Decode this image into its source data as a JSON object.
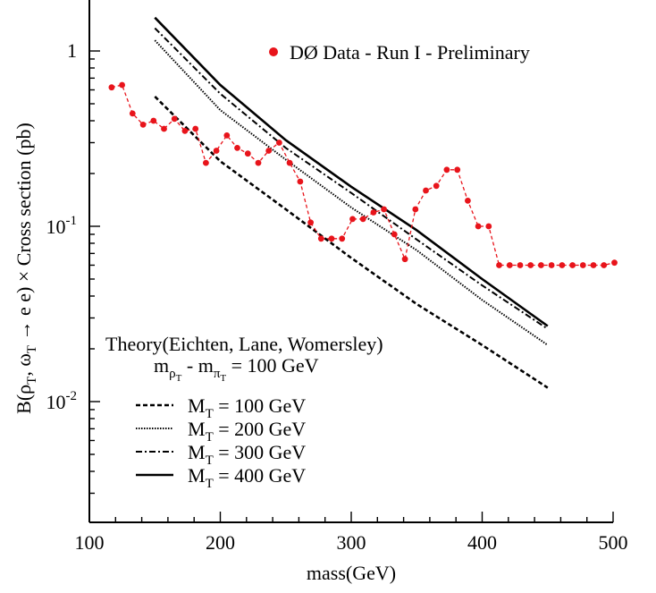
{
  "chart_data": {
    "type": "line",
    "title": "",
    "xlabel": "mass(GeV)",
    "ylabel": {
      "pre": "B(",
      "rho": "ρ",
      "rho_sub": "T",
      "sep": ", ",
      "omega": "ω",
      "omega_sub": "T",
      "arrow": " → e e)  ×  Cross section (pb)"
    },
    "xlim": [
      100,
      500
    ],
    "ylim": [
      0.003,
      3.0
    ],
    "ylog": true,
    "grid": false,
    "x_ticks": [
      {
        "value": 100,
        "label": "100"
      },
      {
        "value": 200,
        "label": "200"
      },
      {
        "value": 300,
        "label": "300"
      },
      {
        "value": 400,
        "label": "400"
      },
      {
        "value": 500,
        "label": "500"
      }
    ],
    "y_tick_labels": {
      "one": {
        "value": 1,
        "label": "1"
      },
      "tenth": {
        "value": 0.1,
        "base": "10",
        "exp": "-1"
      },
      "hundredth": {
        "value": 0.01,
        "base": "10",
        "exp": "-2"
      }
    },
    "data_series": {
      "name": "DØ Data - Run I - Preliminary",
      "color": "#e8141b",
      "x": [
        117,
        125,
        133,
        141,
        149,
        157,
        165,
        173,
        181,
        189,
        197,
        205,
        213,
        221,
        229,
        237,
        245,
        253,
        261,
        269,
        277,
        285,
        293,
        301,
        309,
        317,
        325,
        333,
        341,
        349,
        357,
        365,
        373,
        381,
        389,
        397,
        405,
        413,
        421,
        429,
        437,
        445,
        453,
        461,
        469,
        477,
        485,
        493,
        501
      ],
      "y": [
        0.62,
        0.64,
        0.44,
        0.38,
        0.4,
        0.36,
        0.41,
        0.35,
        0.36,
        0.23,
        0.27,
        0.33,
        0.28,
        0.26,
        0.23,
        0.27,
        0.3,
        0.23,
        0.18,
        0.105,
        0.085,
        0.085,
        0.085,
        0.11,
        0.11,
        0.12,
        0.125,
        0.09,
        0.065,
        0.125,
        0.16,
        0.17,
        0.21,
        0.21,
        0.14,
        0.1,
        0.1,
        0.06,
        0.06,
        0.06,
        0.06,
        0.06,
        0.06,
        0.06,
        0.06,
        0.06,
        0.06,
        0.06,
        0.062
      ]
    },
    "theory": {
      "title": "Theory(Eichten, Lane, Womersley)",
      "mass_diff": {
        "m": "m",
        "rho": "ρ",
        "pi": "π",
        "sub": "T",
        "minus": " - ",
        "equals": " = 100 GeV"
      },
      "series": [
        {
          "prefix": "M",
          "sub": "T",
          "suffix": " = 100 GeV",
          "dash": "dashed",
          "x": [
            150,
            200,
            250,
            300,
            350,
            400,
            450
          ],
          "y": [
            0.55,
            0.235,
            0.125,
            0.066,
            0.036,
            0.021,
            0.012
          ]
        },
        {
          "prefix": "M",
          "sub": "T",
          "suffix": " = 200 GeV",
          "dash": "dotted",
          "x": [
            150,
            200,
            250,
            300,
            350,
            400,
            450
          ],
          "y": [
            1.15,
            0.46,
            0.24,
            0.128,
            0.073,
            0.038,
            0.021
          ]
        },
        {
          "prefix": "M",
          "sub": "T",
          "suffix": " = 300 GeV",
          "dash": "dashdot",
          "x": [
            150,
            200,
            250,
            300,
            350,
            400,
            450
          ],
          "y": [
            1.35,
            0.57,
            0.28,
            0.155,
            0.084,
            0.046,
            0.026
          ]
        },
        {
          "prefix": "M",
          "sub": "T",
          "suffix": " = 400 GeV",
          "dash": "solid",
          "x": [
            150,
            200,
            250,
            300,
            350,
            400,
            450
          ],
          "y": [
            1.55,
            0.64,
            0.31,
            0.168,
            0.095,
            0.05,
            0.027
          ]
        }
      ]
    },
    "legend_position": "top-right"
  }
}
